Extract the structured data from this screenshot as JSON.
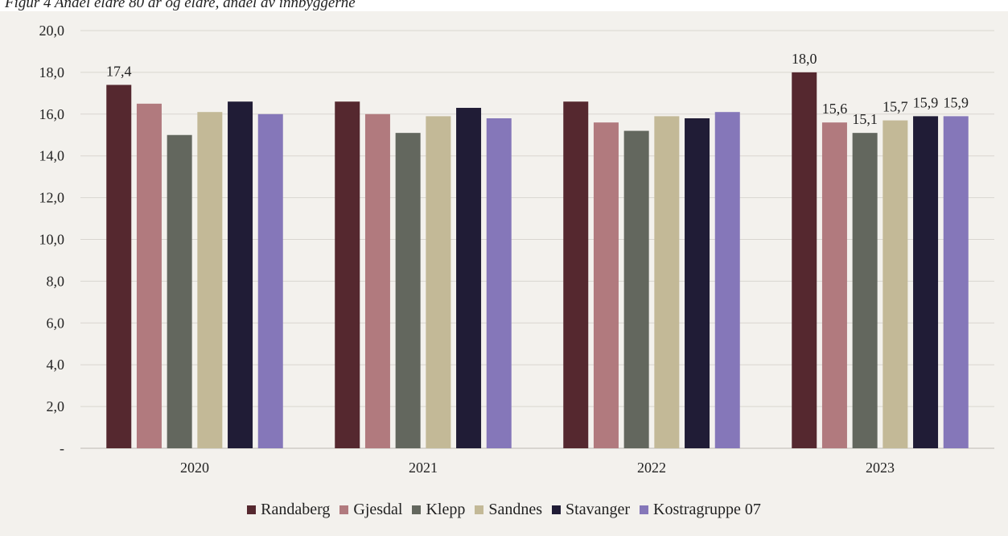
{
  "caption": "Figur 4 Andel eldre 80 år og eldre, andel av innbyggerne",
  "chart_data": {
    "type": "bar",
    "title": "",
    "xlabel": "",
    "ylabel": "",
    "ylim": [
      0,
      20
    ],
    "yticks": [
      "-",
      "2,0",
      "4,0",
      "6,0",
      "8,0",
      "10,0",
      "12,0",
      "14,0",
      "16,0",
      "18,0",
      "20,0"
    ],
    "grid": true,
    "legend_position": "bottom",
    "categories": [
      "2020",
      "2021",
      "2022",
      "2023"
    ],
    "series": [
      {
        "name": "Randaberg",
        "color": "#55282f",
        "values": [
          17.4,
          16.6,
          16.6,
          18.0
        ],
        "labels": [
          "17,4",
          "",
          "",
          "18,0"
        ]
      },
      {
        "name": "Gjesdal",
        "color": "#b17a7e",
        "values": [
          16.5,
          16.0,
          15.6,
          15.6
        ],
        "labels": [
          "",
          "",
          "",
          "15,6"
        ]
      },
      {
        "name": "Klepp",
        "color": "#63675e",
        "values": [
          15.0,
          15.1,
          15.2,
          15.1
        ],
        "labels": [
          "",
          "",
          "",
          "15,1"
        ]
      },
      {
        "name": "Sandnes",
        "color": "#c3b997",
        "values": [
          16.1,
          15.9,
          15.9,
          15.7
        ],
        "labels": [
          "",
          "",
          "",
          "15,7"
        ]
      },
      {
        "name": "Stavanger",
        "color": "#201c36",
        "values": [
          16.6,
          16.3,
          15.8,
          15.9
        ],
        "labels": [
          "",
          "",
          "",
          "15,9"
        ]
      },
      {
        "name": "Kostragruppe 07",
        "color": "#8577b9",
        "values": [
          16.0,
          15.8,
          16.1,
          15.9
        ],
        "labels": [
          "",
          "",
          "",
          "15,9"
        ]
      }
    ]
  }
}
